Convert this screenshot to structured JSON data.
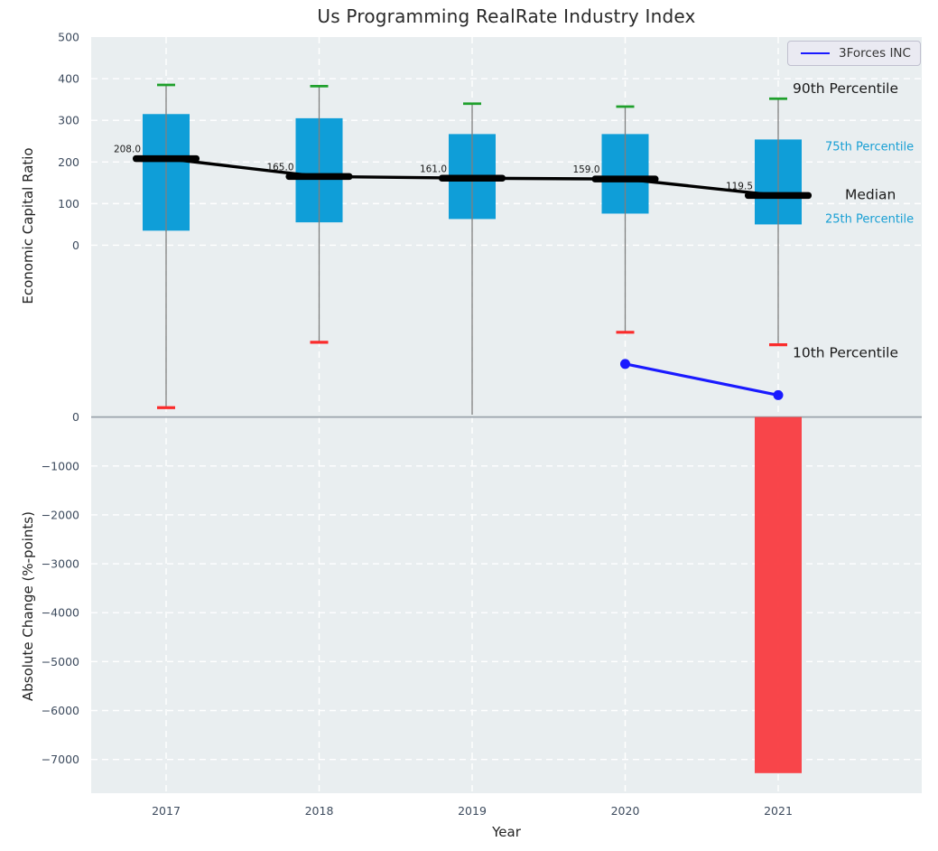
{
  "chart_data": {
    "type": "boxplot+bar",
    "title": "Us Programming RealRate Industry Index",
    "xlabel": "Year",
    "years": [
      2017,
      2018,
      2019,
      2020,
      2021
    ],
    "legend": {
      "label": "3Forces INC",
      "position": "upper right"
    },
    "top_panel": {
      "ylabel": "Economic Capital Ratio",
      "ylim": [
        -409,
        500
      ],
      "yticks": [
        500,
        400,
        300,
        200,
        100,
        0
      ],
      "grid": true,
      "boxes": {
        "p90": [
          385,
          382,
          340,
          333,
          352
        ],
        "q3": [
          315,
          305,
          267,
          267,
          254
        ],
        "median": [
          208,
          165,
          161,
          159,
          119.5
        ],
        "q1": [
          35,
          55,
          63,
          76,
          50
        ],
        "p10": [
          -390,
          -233,
          null,
          -209,
          -239
        ]
      },
      "median_labels": [
        "208.0",
        "165.0",
        "161.0",
        "159.0",
        "119.5"
      ],
      "company_series": {
        "name": "3Forces INC",
        "years": [
          2020,
          2021
        ],
        "values": [
          -285,
          -360
        ]
      },
      "annotations": [
        {
          "text": "90th Percentile",
          "anchor": "p90",
          "style": "dark"
        },
        {
          "text": "75th Percentile",
          "anchor": "q3",
          "style": "accent"
        },
        {
          "text": "Median",
          "anchor": "median",
          "style": "dark"
        },
        {
          "text": "25th Percentile",
          "anchor": "q1",
          "style": "accent"
        },
        {
          "text": "10th Percentile",
          "anchor": "p10",
          "style": "dark"
        }
      ]
    },
    "bottom_panel": {
      "ylabel": "Absolute Change (%-points)",
      "ylim": [
        -7690,
        30
      ],
      "yticks": [
        0,
        -1000,
        -2000,
        -3000,
        -4000,
        -5000,
        -6000,
        -7000
      ],
      "grid": true,
      "bars": [
        {
          "year": 2021,
          "value": -7280
        }
      ]
    },
    "colors": {
      "plot_bg": "#e9eef0",
      "grid": "#ffffff",
      "boundary": "#9aa3ab",
      "box_fill": "#0f9ed8",
      "whisker": "#7f7f7f",
      "cap90": "#1fa02c",
      "cap10": "#fa2b2b",
      "median": "#000000",
      "company_line": "#1a1aff",
      "bar_fill": "#f93b40",
      "accent_text": "#189fd4",
      "dark_text": "#1a1a1a",
      "tick_text": "#3d4b5e"
    }
  }
}
